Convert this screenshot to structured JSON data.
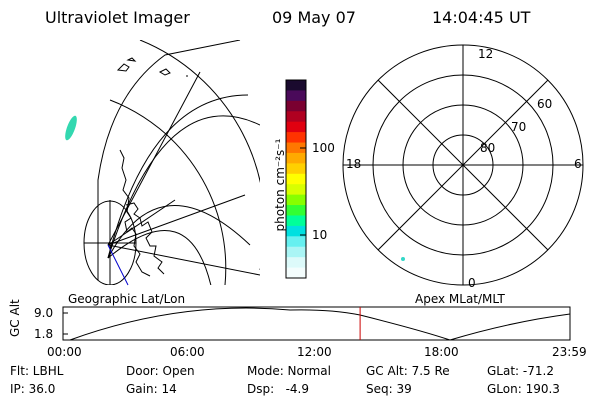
{
  "header": {
    "instrument": "Ultraviolet Imager",
    "date": "09 May 07",
    "time": "14:04:45 UT"
  },
  "colorbar": {
    "unit_label": "photon cm⁻²s⁻¹",
    "ticks": [
      "100",
      "10"
    ],
    "colors": [
      "#1a0a2e",
      "#4a0a5a",
      "#7a0030",
      "#b00020",
      "#e00010",
      "#ff3300",
      "#ff7700",
      "#ffaa00",
      "#ffd000",
      "#ffff00",
      "#d8ff00",
      "#88ff00",
      "#33ff33",
      "#00ff99",
      "#00e0e0",
      "#66f0f0",
      "#aaf5f5",
      "#ddfafa",
      "#f4fdfd"
    ]
  },
  "polar": {
    "labels": {
      "mlt_12": "12",
      "mlt_18": "18",
      "mlt_6": "6",
      "mlt_0": "0",
      "lat_60": "60",
      "lat_70": "70",
      "lat_80": "80"
    }
  },
  "panels": {
    "left_caption": "Geographic Lat/Lon",
    "right_caption": "Apex MLat/MLT"
  },
  "orbit": {
    "y_label": "GC Alt",
    "y_ticks": [
      "9.0",
      "1.8"
    ],
    "x_ticks": [
      "00:00",
      "06:00",
      "12:00",
      "18:00",
      "23:59"
    ],
    "marker_time_fraction": 0.586
  },
  "info": {
    "col1": [
      "Flt: LBHL",
      "IP: 36.0"
    ],
    "col2": [
      "Door: Open",
      "Gain: 14"
    ],
    "col3": [
      "Mode: Normal",
      "Dsp:   -4.9"
    ],
    "col4": [
      "GC Alt: 7.5 Re",
      "Seq: 39"
    ],
    "col5": [
      "GLat: -71.2",
      "GLon: 190.3"
    ]
  }
}
